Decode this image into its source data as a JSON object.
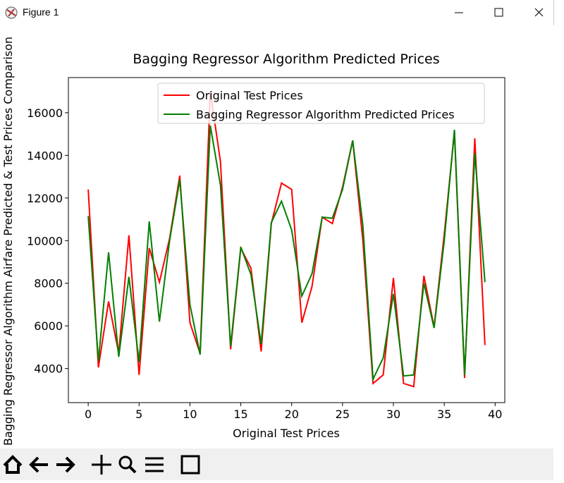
{
  "window": {
    "title": "Figure 1"
  },
  "chart_data": {
    "type": "line",
    "title": "Bagging Regressor Algorithm Predicted Prices",
    "xlabel": "Original Test Prices",
    "ylabel": "Bagging Regressor Algorithm Airfare Predicted & Test Prices Comparison",
    "x": [
      0,
      1,
      2,
      3,
      4,
      5,
      6,
      7,
      8,
      9,
      10,
      11,
      12,
      13,
      14,
      15,
      16,
      17,
      18,
      19,
      20,
      21,
      22,
      23,
      24,
      25,
      26,
      27,
      28,
      29,
      30,
      31,
      32,
      33,
      34,
      35,
      36,
      37,
      38,
      39
    ],
    "series": [
      {
        "name": "Original Test Prices",
        "color": "#ff0000",
        "values": [
          12400,
          4050,
          7150,
          4700,
          10250,
          3700,
          9650,
          8050,
          10100,
          13050,
          6150,
          4700,
          17000,
          13700,
          4900,
          9650,
          8700,
          4800,
          10800,
          12700,
          12400,
          6150,
          7850,
          11100,
          10800,
          12500,
          14700,
          10000,
          3300,
          3700,
          8250,
          3300,
          3150,
          8350,
          5950,
          10300,
          15100,
          3550,
          14800,
          5100
        ]
      },
      {
        "name": "Bagging Regressor Algorithm Predicted Prices",
        "color": "#008000",
        "values": [
          11150,
          4350,
          9450,
          4550,
          8300,
          4300,
          10900,
          6200,
          10000,
          12850,
          7000,
          4650,
          15400,
          12600,
          5050,
          9700,
          8400,
          5150,
          10850,
          11850,
          10500,
          7400,
          8450,
          11100,
          11050,
          12400,
          14700,
          10700,
          3500,
          4500,
          7500,
          3650,
          3700,
          8000,
          5900,
          10000,
          15200,
          3700,
          14100,
          8050
        ]
      }
    ],
    "xlim": [
      -1.95,
      40.95
    ],
    "xticks": [
      0,
      5,
      10,
      15,
      20,
      25,
      30,
      35,
      40
    ],
    "ylim": [
      2400,
      17650
    ],
    "yticks": [
      4000,
      6000,
      8000,
      10000,
      12000,
      14000,
      16000
    ],
    "legend": "upper center"
  }
}
